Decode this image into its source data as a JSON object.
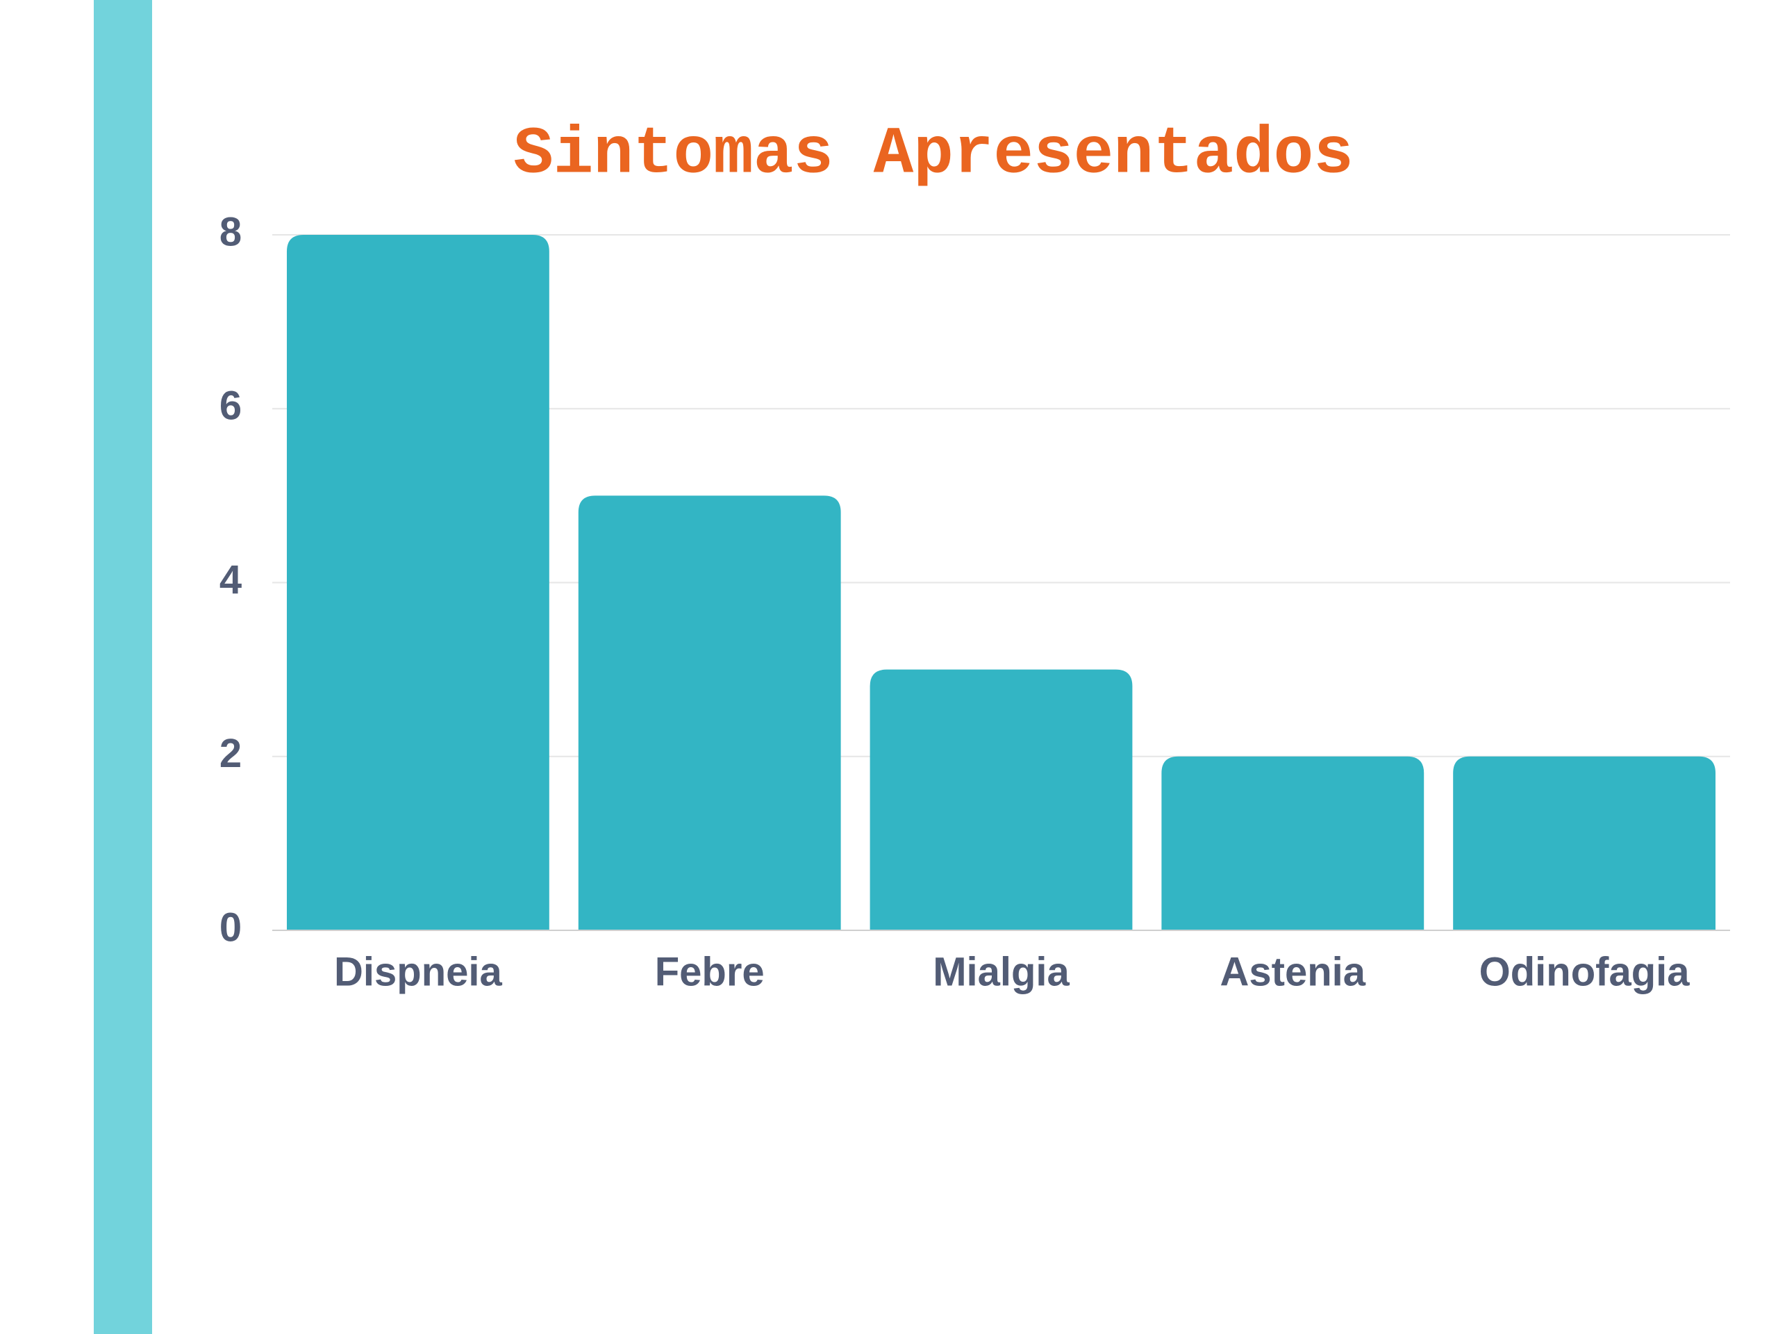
{
  "chart_data": {
    "type": "bar",
    "title": "Sintomas Apresentados",
    "categories": [
      "Dispneia",
      "Febre",
      "Mialgia",
      "Astenia",
      "Odinofagia"
    ],
    "values": [
      8,
      5,
      3,
      2,
      2
    ],
    "color": "#33b5c4",
    "ylim": [
      0,
      8
    ],
    "yticks": [
      0,
      2,
      4,
      6,
      8
    ],
    "grid": true
  }
}
